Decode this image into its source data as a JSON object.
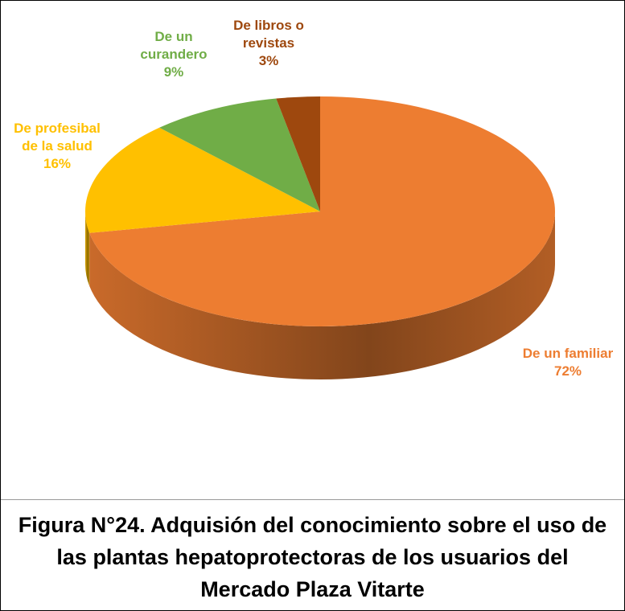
{
  "chart_data": {
    "type": "pie",
    "title": "Figura N°24. Adquisión del conocimiento sobre el uso de las plantas hepatoprotectoras de los usuarios del Mercado Plaza Vitarte",
    "categories": [
      "De un familiar",
      "De profesibal de la salud",
      "De un curandero",
      "De libros o revistas"
    ],
    "values": [
      72,
      16,
      9,
      3
    ],
    "value_labels": [
      "72%",
      "16%",
      "9%",
      "3%"
    ],
    "colors": [
      "#ED7D31",
      "#FFC000",
      "#70AD47",
      "#9E480E"
    ]
  }
}
